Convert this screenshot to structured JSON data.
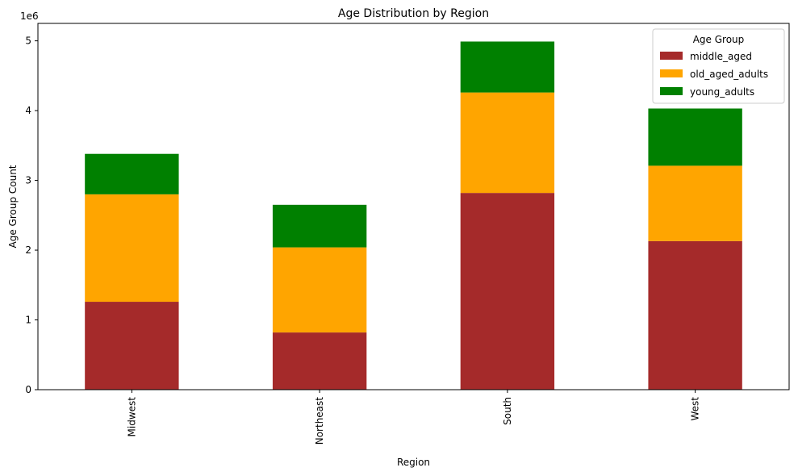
{
  "chart_data": {
    "type": "bar",
    "stacked": true,
    "title": "Age Distribution by Region",
    "xlabel": "Region",
    "ylabel": "Age Group Count",
    "y_multiplier_label": "1e6",
    "ylim": [
      0,
      5.25
    ],
    "yticks": [
      0,
      1,
      2,
      3,
      4,
      5
    ],
    "categories": [
      "Midwest",
      "Northeast",
      "South",
      "West"
    ],
    "series": [
      {
        "name": "middle_aged",
        "color": "#a52a2a",
        "values": [
          1.26,
          0.82,
          2.82,
          2.13
        ]
      },
      {
        "name": "old_aged_adults",
        "color": "#ffa500",
        "values": [
          1.54,
          1.22,
          1.44,
          1.08
        ]
      },
      {
        "name": "young_adults",
        "color": "#008000",
        "values": [
          0.58,
          0.61,
          0.73,
          0.82
        ]
      }
    ],
    "legend": {
      "title": "Age Group",
      "placement": "top-right"
    },
    "grid": false
  }
}
